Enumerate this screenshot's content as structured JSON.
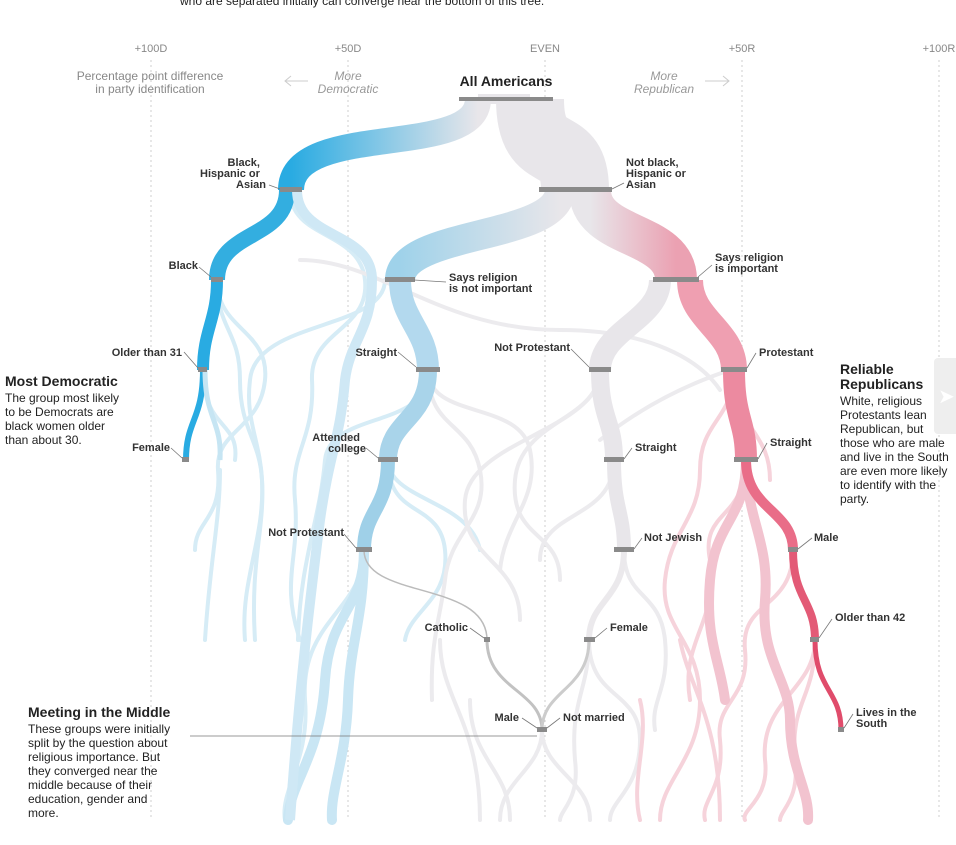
{
  "intro_line": "who are separated initially can converge near the bottom of this tree.",
  "axis": {
    "ticks": [
      "+100D",
      "+50D",
      "EVEN",
      "+50R",
      "+100R"
    ],
    "description_line1": "Percentage point difference",
    "description_line2": "in party identification",
    "more_dem_line1": "More",
    "more_dem_line2": "Democratic",
    "more_rep_line1": "More",
    "more_rep_line2": "Republican"
  },
  "root_label": "All Americans",
  "nodes": {
    "black_hisp_asian": [
      "Black,",
      "Hispanic or",
      "Asian"
    ],
    "not_black": [
      "Not black,",
      "Hispanic or",
      "Asian"
    ],
    "black": "Black",
    "rel_not_important": [
      "Says religion",
      "is not important"
    ],
    "rel_important": [
      "Says religion",
      "is important"
    ],
    "older_31": "Older than 31",
    "straight_left": "Straight",
    "not_protestant_mid": "Not Protestant",
    "protestant": "Protestant",
    "female_left": "Female",
    "attended_college": [
      "Attended",
      "college"
    ],
    "straight_mid": "Straight",
    "straight_right": "Straight",
    "not_protestant_low": "Not Protestant",
    "not_jewish": "Not Jewish",
    "male_right": "Male",
    "catholic": "Catholic",
    "female_mid": "Female",
    "older_42": "Older than 42",
    "male_mid": "Male",
    "not_married": "Not married",
    "lives_south": [
      "Lives in the",
      "South"
    ]
  },
  "annotations": {
    "most_dem": {
      "title": "Most Democratic",
      "body": "The group most likely to be Democrats are black women older than about 30."
    },
    "reliable_rep": {
      "title": "Reliable Republicans",
      "body": "White, religious Protestants lean Republican, but those who are male and live in the South are even more likely to identify with the party."
    },
    "middle": {
      "title": "Meeting in the Middle",
      "body": "These groups were initially split by the question about religious importance. But they converged near the middle because of their education, gender and more."
    }
  },
  "colors": {
    "democratic": "#29abe2",
    "republican": "#e35a76",
    "neutral": "#e8e6ea",
    "node_bar": "#888888"
  },
  "icons": {
    "next": "chevron-right-icon"
  }
}
